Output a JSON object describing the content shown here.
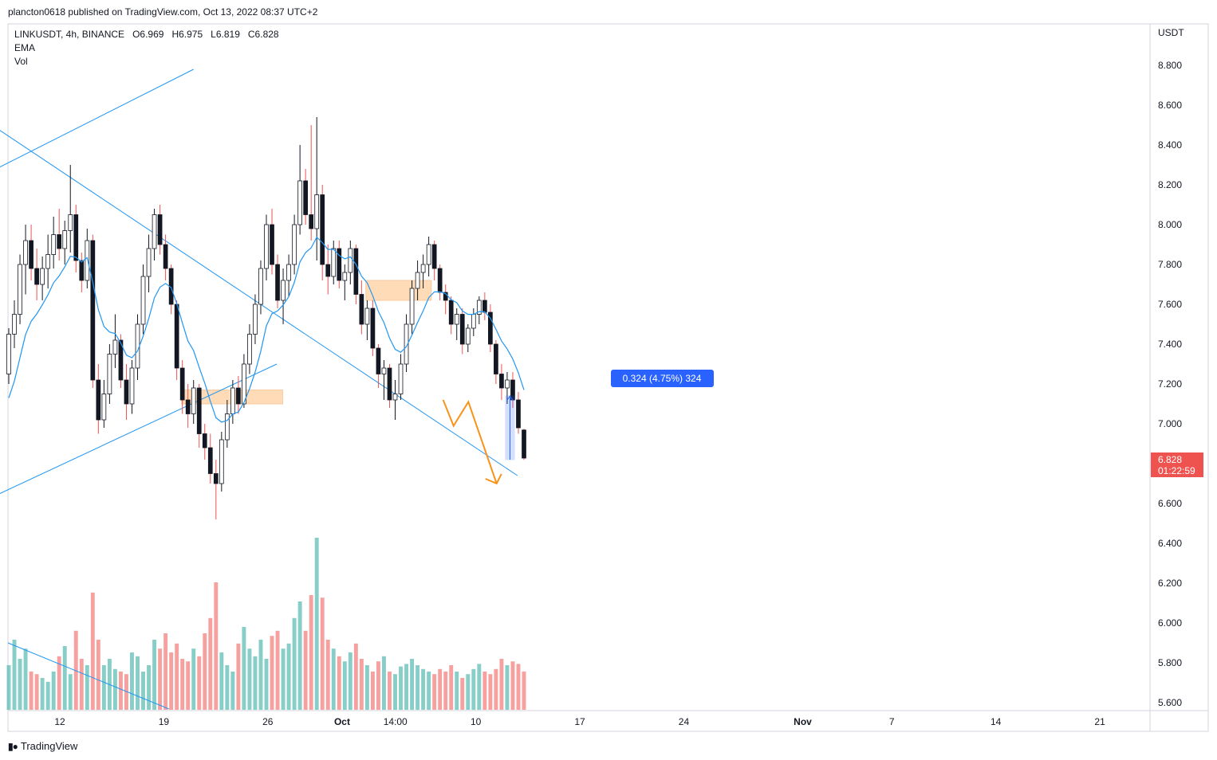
{
  "header": {
    "published_by": "plancton0618 published on TradingView.com, Oct 13, 2022 08:37 UTC+2"
  },
  "legend": {
    "symbol_line": "LINKUSDT, 4h, BINANCE",
    "open": "O6.969",
    "high": "H6.975",
    "low": "L6.819",
    "close": "C6.828",
    "indicator_ema": "EMA",
    "indicator_vol": "Vol"
  },
  "price_axis": {
    "currency": "USDT",
    "last_price": "6.828",
    "countdown": "01:22:59"
  },
  "measure_label": "0.324 (4.75%) 324",
  "footer": {
    "brand": "TradingView"
  },
  "colors": {
    "up": "#26a69a",
    "down": "#ef5350",
    "trendline": "#2196f3",
    "zone_fill": "#ffcc99",
    "projection": "#f7931a",
    "measure_fill": "#2962ff",
    "price_tag": "#ef5350"
  },
  "chart_data": {
    "type": "candlestick",
    "symbol": "LINKUSDT",
    "timeframe": "4h",
    "exchange": "BINANCE",
    "y_axis": {
      "ticks": [
        "8.800",
        "8.600",
        "8.400",
        "8.200",
        "8.000",
        "7.800",
        "7.600",
        "7.400",
        "7.200",
        "7.000",
        "6.800",
        "6.600",
        "6.400",
        "6.200",
        "6.000",
        "5.800",
        "5.600"
      ],
      "ylim": [
        5.55,
        8.95
      ]
    },
    "x_axis": {
      "ticks": [
        "12",
        "19",
        "26",
        "Oct",
        "14:00",
        "10",
        "17",
        "24",
        "Nov",
        "7",
        "14",
        "21"
      ],
      "tick_days": [
        12,
        19,
        26,
        31,
        34.583,
        40,
        47,
        54,
        62,
        68,
        75,
        82
      ],
      "note_day_origin": "Sept 0"
    },
    "last": {
      "open": 6.969,
      "high": 6.975,
      "low": 6.819,
      "close": 6.828
    },
    "candles": [
      [
        7.25,
        7.48,
        7.2,
        7.45
      ],
      [
        7.45,
        7.62,
        7.38,
        7.55
      ],
      [
        7.55,
        7.85,
        7.5,
        7.8
      ],
      [
        7.8,
        8.0,
        7.65,
        7.92
      ],
      [
        7.92,
        8.0,
        7.72,
        7.78
      ],
      [
        7.78,
        7.88,
        7.62,
        7.7
      ],
      [
        7.7,
        7.84,
        7.62,
        7.78
      ],
      [
        7.78,
        7.95,
        7.68,
        7.85
      ],
      [
        7.85,
        8.04,
        7.78,
        7.95
      ],
      [
        7.95,
        8.08,
        7.82,
        7.88
      ],
      [
        7.88,
        8.02,
        7.8,
        7.97
      ],
      [
        7.97,
        8.3,
        7.86,
        8.05
      ],
      [
        8.05,
        8.1,
        7.76,
        7.82
      ],
      [
        7.82,
        7.86,
        7.66,
        7.72
      ],
      [
        7.72,
        7.98,
        7.68,
        7.92
      ],
      [
        7.92,
        7.95,
        7.18,
        7.22
      ],
      [
        7.22,
        7.3,
        6.95,
        7.02
      ],
      [
        7.02,
        7.22,
        6.98,
        7.15
      ],
      [
        7.15,
        7.4,
        7.1,
        7.35
      ],
      [
        7.35,
        7.55,
        7.28,
        7.42
      ],
      [
        7.42,
        7.45,
        7.18,
        7.22
      ],
      [
        7.22,
        7.3,
        7.02,
        7.1
      ],
      [
        7.1,
        7.32,
        7.05,
        7.28
      ],
      [
        7.28,
        7.55,
        7.22,
        7.5
      ],
      [
        7.5,
        7.8,
        7.45,
        7.74
      ],
      [
        7.74,
        7.95,
        7.66,
        7.88
      ],
      [
        7.88,
        8.08,
        7.82,
        8.05
      ],
      [
        8.05,
        8.1,
        7.85,
        7.9
      ],
      [
        7.9,
        7.95,
        7.72,
        7.78
      ],
      [
        7.78,
        7.8,
        7.55,
        7.6
      ],
      [
        7.6,
        7.62,
        7.22,
        7.28
      ],
      [
        7.28,
        7.32,
        7.05,
        7.12
      ],
      [
        7.12,
        7.2,
        6.98,
        7.05
      ],
      [
        7.05,
        7.22,
        7.0,
        7.18
      ],
      [
        7.18,
        7.2,
        6.88,
        6.95
      ],
      [
        6.95,
        7.0,
        6.82,
        6.88
      ],
      [
        6.88,
        6.95,
        6.7,
        6.75
      ],
      [
        6.75,
        6.82,
        6.52,
        6.7
      ],
      [
        6.7,
        6.96,
        6.66,
        6.92
      ],
      [
        6.92,
        7.12,
        6.88,
        7.05
      ],
      [
        7.05,
        7.22,
        7.0,
        7.18
      ],
      [
        7.18,
        7.24,
        7.05,
        7.1
      ],
      [
        7.1,
        7.35,
        7.08,
        7.3
      ],
      [
        7.3,
        7.5,
        7.25,
        7.45
      ],
      [
        7.45,
        7.65,
        7.4,
        7.6
      ],
      [
        7.6,
        7.82,
        7.55,
        7.78
      ],
      [
        7.78,
        8.05,
        7.72,
        8.0
      ],
      [
        8.0,
        8.08,
        7.75,
        7.8
      ],
      [
        7.8,
        7.85,
        7.58,
        7.62
      ],
      [
        7.62,
        7.78,
        7.5,
        7.72
      ],
      [
        7.72,
        7.85,
        7.64,
        7.8
      ],
      [
        7.8,
        8.05,
        7.75,
        8.0
      ],
      [
        8.0,
        8.4,
        7.95,
        8.22
      ],
      [
        8.22,
        8.28,
        8.0,
        8.05
      ],
      [
        8.05,
        8.5,
        7.92,
        7.98
      ],
      [
        7.98,
        8.54,
        7.82,
        8.15
      ],
      [
        8.15,
        8.2,
        7.72,
        7.8
      ],
      [
        7.8,
        7.9,
        7.65,
        7.74
      ],
      [
        7.74,
        7.92,
        7.7,
        7.88
      ],
      [
        7.88,
        7.92,
        7.68,
        7.72
      ],
      [
        7.72,
        7.8,
        7.62,
        7.76
      ],
      [
        7.76,
        7.92,
        7.7,
        7.88
      ],
      [
        7.88,
        7.9,
        7.6,
        7.65
      ],
      [
        7.65,
        7.72,
        7.45,
        7.5
      ],
      [
        7.5,
        7.62,
        7.42,
        7.58
      ],
      [
        7.58,
        7.62,
        7.34,
        7.38
      ],
      [
        7.38,
        7.4,
        7.18,
        7.25
      ],
      [
        7.25,
        7.32,
        7.12,
        7.28
      ],
      [
        7.28,
        7.3,
        7.08,
        7.12
      ],
      [
        7.12,
        7.22,
        7.02,
        7.15
      ],
      [
        7.15,
        7.35,
        7.12,
        7.3
      ],
      [
        7.3,
        7.55,
        7.26,
        7.5
      ],
      [
        7.5,
        7.72,
        7.45,
        7.68
      ],
      [
        7.68,
        7.82,
        7.62,
        7.76
      ],
      [
        7.76,
        7.85,
        7.68,
        7.8
      ],
      [
        7.8,
        7.94,
        7.74,
        7.9
      ],
      [
        7.9,
        7.92,
        7.72,
        7.78
      ],
      [
        7.78,
        7.8,
        7.62,
        7.66
      ],
      [
        7.66,
        7.7,
        7.55,
        7.62
      ],
      [
        7.62,
        7.64,
        7.45,
        7.5
      ],
      [
        7.5,
        7.58,
        7.42,
        7.55
      ],
      [
        7.55,
        7.58,
        7.35,
        7.4
      ],
      [
        7.4,
        7.5,
        7.36,
        7.48
      ],
      [
        7.48,
        7.58,
        7.44,
        7.55
      ],
      [
        7.55,
        7.64,
        7.5,
        7.62
      ],
      [
        7.62,
        7.66,
        7.52,
        7.56
      ],
      [
        7.56,
        7.6,
        7.36,
        7.4
      ],
      [
        7.4,
        7.42,
        7.2,
        7.25
      ],
      [
        7.25,
        7.3,
        7.12,
        7.18
      ],
      [
        7.18,
        7.26,
        7.1,
        7.22
      ],
      [
        7.22,
        7.26,
        7.08,
        7.12
      ],
      [
        7.12,
        7.16,
        6.95,
        6.98
      ],
      [
        6.969,
        6.975,
        6.819,
        6.828
      ]
    ],
    "ema": {
      "period_label": "EMA",
      "start_value": 7.05
    },
    "volume": {
      "label": "Vol",
      "values": [
        0.35,
        0.55,
        0.4,
        0.48,
        0.3,
        0.28,
        0.25,
        0.22,
        0.3,
        0.42,
        0.5,
        0.28,
        0.62,
        0.4,
        0.35,
        0.92,
        0.55,
        0.35,
        0.4,
        0.32,
        0.3,
        0.28,
        0.45,
        0.42,
        0.3,
        0.35,
        0.55,
        0.48,
        0.6,
        0.45,
        0.52,
        0.4,
        0.38,
        0.48,
        0.42,
        0.6,
        0.72,
        1.0,
        0.45,
        0.35,
        0.3,
        0.52,
        0.65,
        0.48,
        0.42,
        0.55,
        0.4,
        0.58,
        0.62,
        0.48,
        0.52,
        0.72,
        0.85,
        0.62,
        0.9,
        1.35,
        0.88,
        0.55,
        0.48,
        0.42,
        0.38,
        0.45,
        0.52,
        0.4,
        0.35,
        0.3,
        0.38,
        0.42,
        0.3,
        0.28,
        0.34,
        0.36,
        0.4,
        0.35,
        0.32,
        0.3,
        0.28,
        0.32,
        0.3,
        0.35,
        0.3,
        0.25,
        0.28,
        0.32,
        0.36,
        0.3,
        0.28,
        0.32,
        0.4,
        0.35,
        0.38,
        0.36,
        0.3
      ]
    },
    "drawings": {
      "trendlines": [
        {
          "from": {
            "day": 0.8,
            "price": 8.83
          },
          "to": {
            "day": 42.8,
            "price": 6.74
          }
        },
        {
          "from": {
            "day": 0.8,
            "price": 8.02
          },
          "to": {
            "day": 21.0,
            "price": 8.78
          }
        },
        {
          "from": {
            "day": 0.8,
            "price": 6.4
          },
          "to": {
            "day": 26.6,
            "price": 7.3
          }
        }
      ],
      "zones": [
        {
          "from_day": 32.6,
          "to_day": 37.0,
          "top": 7.72,
          "bottom": 7.62
        },
        {
          "from_day": 20.2,
          "to_day": 27.0,
          "top": 7.17,
          "bottom": 7.1
        }
      ],
      "projection_path": [
        {
          "day": 37.8,
          "price": 7.12
        },
        {
          "day": 38.5,
          "price": 6.99
        },
        {
          "day": 39.5,
          "price": 7.11
        },
        {
          "day": 41.4,
          "price": 6.7
        }
      ],
      "measure": {
        "from_day": 42.0,
        "to_day": 42.6,
        "top": 7.14,
        "bottom": 6.82
      }
    }
  }
}
